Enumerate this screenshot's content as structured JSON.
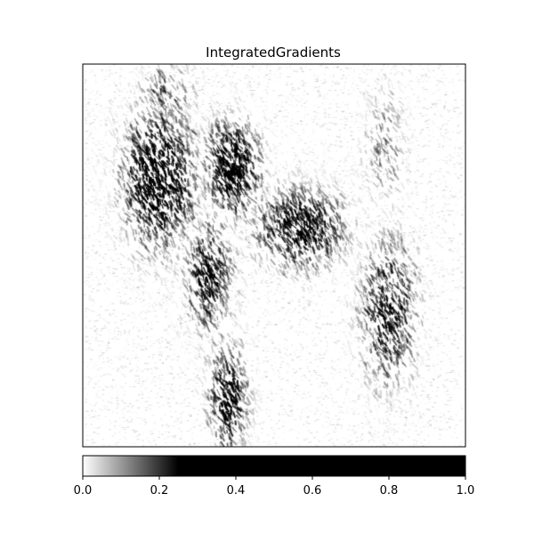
{
  "chart_data": {
    "type": "heatmap",
    "title": "IntegratedGradients",
    "colormap": "gray_r",
    "axes_ticks_visible": false,
    "colorbar": {
      "orientation": "horizontal",
      "placement": "bottom",
      "range": [
        0.0,
        1.0
      ],
      "saturation_value": 0.25,
      "ticks": [
        0.0,
        0.2,
        0.4,
        0.6,
        0.8,
        1.0
      ],
      "tick_labels": [
        "0.0",
        "0.2",
        "0.4",
        "0.6",
        "0.8",
        "1.0"
      ]
    },
    "grid": false,
    "hotspots": [
      {
        "x": 0.2,
        "y": 0.3,
        "sx": 0.09,
        "sy": 0.17,
        "w": 1.0
      },
      {
        "x": 0.39,
        "y": 0.27,
        "sx": 0.07,
        "sy": 0.12,
        "w": 0.95
      },
      {
        "x": 0.33,
        "y": 0.55,
        "sx": 0.06,
        "sy": 0.14,
        "w": 0.75
      },
      {
        "x": 0.38,
        "y": 0.87,
        "sx": 0.05,
        "sy": 0.13,
        "w": 0.8
      },
      {
        "x": 0.57,
        "y": 0.43,
        "sx": 0.11,
        "sy": 0.1,
        "w": 0.85
      },
      {
        "x": 0.8,
        "y": 0.65,
        "sx": 0.07,
        "sy": 0.17,
        "w": 0.75
      },
      {
        "x": 0.79,
        "y": 0.22,
        "sx": 0.05,
        "sy": 0.15,
        "w": 0.35
      },
      {
        "x": 0.22,
        "y": 0.08,
        "sx": 0.07,
        "sy": 0.07,
        "w": 0.45
      }
    ]
  }
}
